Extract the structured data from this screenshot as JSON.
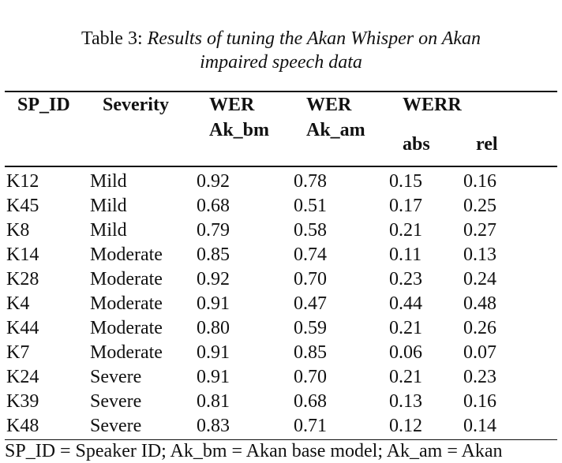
{
  "caption": {
    "label": "Table 3: ",
    "title_line1": "Results of tuning the Akan Whisper on Akan",
    "title_line2": "impaired speech data"
  },
  "headers": {
    "sp_id": "SP_ID",
    "severity": "Severity",
    "wer_bm_line1": "WER",
    "wer_bm_line2": "Ak_bm",
    "wer_am_line1": "WER",
    "wer_am_line2": "Ak_am",
    "werr": "WERR",
    "abs": "abs",
    "rel": "rel"
  },
  "rows": [
    {
      "sp_id": "K12",
      "severity": "Mild",
      "wer_bm": "0.92",
      "wer_am": "0.78",
      "abs": "0.15",
      "rel": "0.16"
    },
    {
      "sp_id": "K45",
      "severity": "Mild",
      "wer_bm": "0.68",
      "wer_am": "0.51",
      "abs": "0.17",
      "rel": "0.25"
    },
    {
      "sp_id": "K8",
      "severity": "Mild",
      "wer_bm": "0.79",
      "wer_am": "0.58",
      "abs": "0.21",
      "rel": "0.27"
    },
    {
      "sp_id": "K14",
      "severity": "Moderate",
      "wer_bm": "0.85",
      "wer_am": "0.74",
      "abs": "0.11",
      "rel": "0.13"
    },
    {
      "sp_id": "K28",
      "severity": "Moderate",
      "wer_bm": "0.92",
      "wer_am": "0.70",
      "abs": "0.23",
      "rel": "0.24"
    },
    {
      "sp_id": "K4",
      "severity": "Moderate",
      "wer_bm": "0.91",
      "wer_am": "0.47",
      "abs": "0.44",
      "rel": "0.48"
    },
    {
      "sp_id": "K44",
      "severity": "Moderate",
      "wer_bm": "0.80",
      "wer_am": "0.59",
      "abs": "0.21",
      "rel": "0.26"
    },
    {
      "sp_id": "K7",
      "severity": "Moderate",
      "wer_bm": "0.91",
      "wer_am": "0.85",
      "abs": "0.06",
      "rel": "0.07"
    },
    {
      "sp_id": "K24",
      "severity": "Severe",
      "wer_bm": "0.91",
      "wer_am": "0.70",
      "abs": "0.21",
      "rel": "0.23"
    },
    {
      "sp_id": "K39",
      "severity": "Severe",
      "wer_bm": "0.81",
      "wer_am": "0.68",
      "abs": "0.13",
      "rel": "0.16"
    },
    {
      "sp_id": "K48",
      "severity": "Severe",
      "wer_bm": "0.83",
      "wer_am": "0.71",
      "abs": "0.12",
      "rel": "0.14"
    }
  ],
  "footnote": "SP_ID = Speaker ID; Ak_bm = Akan base model; Ak_am = Akan"
}
